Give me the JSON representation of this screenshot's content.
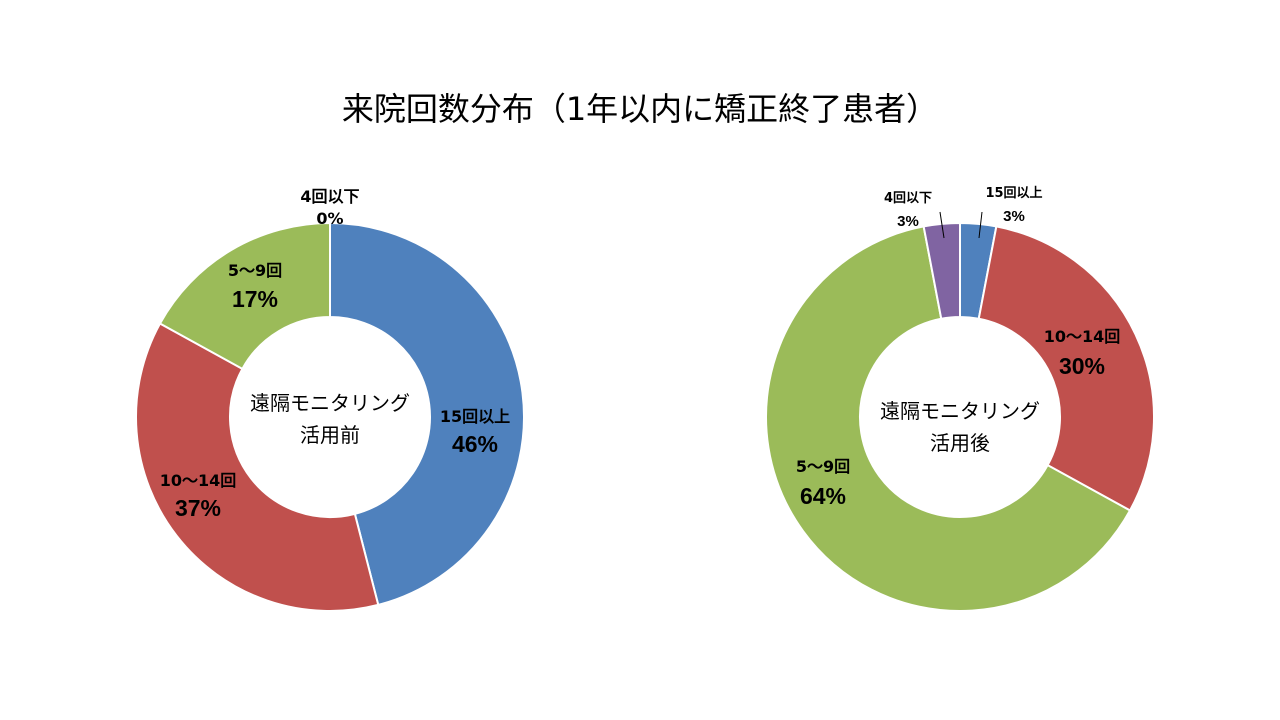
{
  "title": "来院回数分布（1年以内に矯正終了患者）",
  "chart_data": [
    {
      "type": "pie",
      "center_label": [
        "遠隔モニタリング",
        "活用前"
      ],
      "slices": [
        {
          "label": "15回以上",
          "value": 46,
          "pct": "46%",
          "color": "#4F81BD"
        },
        {
          "label": "10～14回",
          "value": 37,
          "pct": "37%",
          "color": "#C0504D"
        },
        {
          "label": "5～9回",
          "value": 17,
          "pct": "17%",
          "color": "#9BBB59"
        },
        {
          "label": "4回以下",
          "value": 0,
          "pct": "0%",
          "color": "#8064A2"
        }
      ]
    },
    {
      "type": "pie",
      "center_label": [
        "遠隔モニタリング",
        "活用後"
      ],
      "slices": [
        {
          "label": "15回以上",
          "value": 3,
          "pct": "3%",
          "color": "#4F81BD"
        },
        {
          "label": "10～14回",
          "value": 30,
          "pct": "30%",
          "color": "#C0504D"
        },
        {
          "label": "5～9回",
          "value": 64,
          "pct": "64%",
          "color": "#9BBB59"
        },
        {
          "label": "4回以下",
          "value": 3,
          "pct": "3%",
          "color": "#8064A2"
        }
      ]
    }
  ]
}
